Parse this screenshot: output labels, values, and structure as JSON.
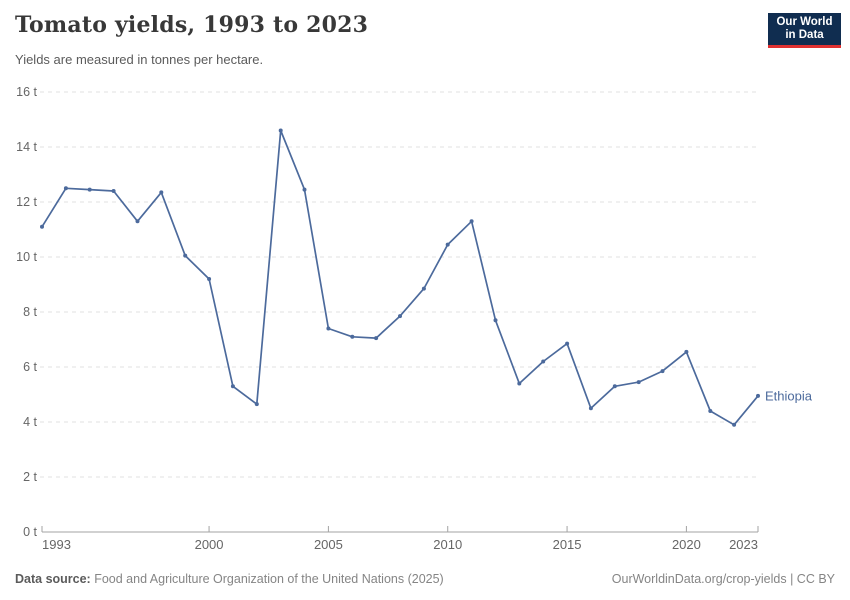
{
  "header": {
    "title": "Tomato yields, 1993 to 2023",
    "subtitle": "Yields are measured in tonnes per hectare."
  },
  "logo": {
    "line1": "Our World",
    "line2": "in Data",
    "bg_color": "#102d50",
    "accent_color": "#e03131"
  },
  "chart_data": {
    "type": "line",
    "title": "Tomato yields, 1993 to 2023",
    "subtitle": "Yields are measured in tonnes per hectare.",
    "unit": "t",
    "xlabel": "",
    "ylabel": "tonnes per hectare",
    "ylim": [
      0,
      16
    ],
    "yticks": [
      0,
      2,
      4,
      6,
      8,
      10,
      12,
      14,
      16
    ],
    "xlim": [
      1993,
      2023
    ],
    "xticks": [
      1993,
      2000,
      2005,
      2010,
      2015,
      2020,
      2023
    ],
    "grid": "horizontal-dashed",
    "legend_position": "end-of-line-label",
    "x": [
      1993,
      1994,
      1995,
      1996,
      1997,
      1998,
      1999,
      2000,
      2001,
      2002,
      2003,
      2004,
      2005,
      2006,
      2007,
      2008,
      2009,
      2010,
      2011,
      2012,
      2013,
      2014,
      2015,
      2016,
      2017,
      2018,
      2019,
      2020,
      2021,
      2022,
      2023
    ],
    "series": [
      {
        "name": "Ethiopia",
        "color": "#4C6A9C",
        "values": [
          11.1,
          12.5,
          12.45,
          12.4,
          11.3,
          12.35,
          10.05,
          9.2,
          5.3,
          4.65,
          14.6,
          12.45,
          7.4,
          7.1,
          7.05,
          7.85,
          8.85,
          10.45,
          11.3,
          7.7,
          5.4,
          6.2,
          6.85,
          4.5,
          5.3,
          5.45,
          5.85,
          6.55,
          4.4,
          3.9,
          4.95
        ]
      }
    ]
  },
  "colors": {
    "line": "#4C6A9C",
    "grid": "#e2e2e2",
    "axis": "#a3a3a3",
    "tick_text": "#666666",
    "title_text": "#383838",
    "subtitle_text": "#5b5b5b"
  },
  "footer": {
    "source_label": "Data source:",
    "source_text": " Food and Agriculture Organization of the United Nations (2025)",
    "attribution": "OurWorldinData.org/crop-yields | CC BY"
  }
}
